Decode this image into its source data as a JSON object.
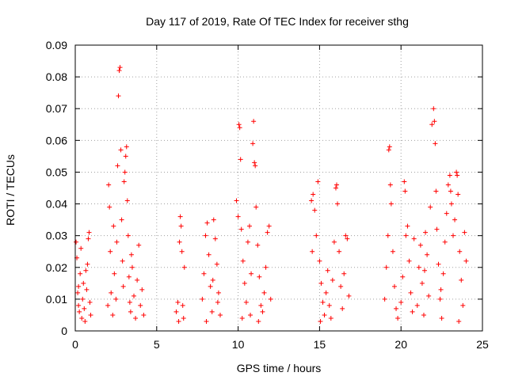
{
  "chart_data": {
    "type": "scatter",
    "title": "Day 117 of 2019, Rate Of TEC Index for receiver sthg",
    "xlabel": "GPS time / hours",
    "ylabel": "ROTI / TECUs",
    "xlim": [
      0,
      25
    ],
    "ylim": [
      0,
      0.09
    ],
    "xticks": [
      0,
      5,
      10,
      15,
      20,
      25
    ],
    "yticks": [
      0,
      0.01,
      0.02,
      0.03,
      0.04,
      0.05,
      0.06,
      0.07,
      0.08,
      0.09
    ],
    "xtick_labels": [
      "0",
      "5",
      "10",
      "15",
      "20",
      "25"
    ],
    "ytick_labels": [
      "0",
      "0.01",
      "0.02",
      "0.03",
      "0.04",
      "0.05",
      "0.06",
      "0.07",
      "0.08",
      "0.09"
    ],
    "grid": true,
    "marker": "+",
    "color": "#ff0000",
    "series": [
      {
        "name": "ROTI",
        "points": [
          [
            0.05,
            0.028
          ],
          [
            0.1,
            0.023
          ],
          [
            0.15,
            0.012
          ],
          [
            0.2,
            0.008
          ],
          [
            0.25,
            0.006
          ],
          [
            0.3,
            0.018
          ],
          [
            0.35,
            0.026
          ],
          [
            0.4,
            0.004
          ],
          [
            0.45,
            0.01
          ],
          [
            0.5,
            0.015
          ],
          [
            0.55,
            0.007
          ],
          [
            0.6,
            0.003
          ],
          [
            0.7,
            0.013
          ],
          [
            0.75,
            0.021
          ],
          [
            0.8,
            0.029
          ],
          [
            0.85,
            0.031
          ],
          [
            0.9,
            0.009
          ],
          [
            0.95,
            0.005
          ],
          [
            0.2,
            0.014
          ],
          [
            0.65,
            0.019
          ],
          [
            2.0,
            0.008
          ],
          [
            2.05,
            0.046
          ],
          [
            2.1,
            0.039
          ],
          [
            2.15,
            0.025
          ],
          [
            2.2,
            0.012
          ],
          [
            2.3,
            0.005
          ],
          [
            2.4,
            0.018
          ],
          [
            2.5,
            0.01
          ],
          [
            2.6,
            0.052
          ],
          [
            2.65,
            0.074
          ],
          [
            2.7,
            0.082
          ],
          [
            2.75,
            0.083
          ],
          [
            2.8,
            0.057
          ],
          [
            2.85,
            0.035
          ],
          [
            2.9,
            0.022
          ],
          [
            2.95,
            0.014
          ],
          [
            3.0,
            0.047
          ],
          [
            3.05,
            0.05
          ],
          [
            3.1,
            0.055
          ],
          [
            3.15,
            0.058
          ],
          [
            3.2,
            0.041
          ],
          [
            3.25,
            0.03
          ],
          [
            3.3,
            0.017
          ],
          [
            3.35,
            0.009
          ],
          [
            3.4,
            0.006
          ],
          [
            3.5,
            0.02
          ],
          [
            3.6,
            0.011
          ],
          [
            3.7,
            0.004
          ],
          [
            3.8,
            0.016
          ],
          [
            3.9,
            0.027
          ],
          [
            4.0,
            0.008
          ],
          [
            4.1,
            0.013
          ],
          [
            4.2,
            0.005
          ],
          [
            2.55,
            0.028
          ],
          [
            2.35,
            0.033
          ],
          [
            3.45,
            0.024
          ],
          [
            6.2,
            0.006
          ],
          [
            6.3,
            0.009
          ],
          [
            6.4,
            0.028
          ],
          [
            6.45,
            0.036
          ],
          [
            6.5,
            0.033
          ],
          [
            6.55,
            0.025
          ],
          [
            6.6,
            0.008
          ],
          [
            6.65,
            0.004
          ],
          [
            6.7,
            0.02
          ],
          [
            6.35,
            0.003
          ],
          [
            7.8,
            0.01
          ],
          [
            7.9,
            0.018
          ],
          [
            8.0,
            0.03
          ],
          [
            8.1,
            0.034
          ],
          [
            8.2,
            0.024
          ],
          [
            8.3,
            0.014
          ],
          [
            8.4,
            0.006
          ],
          [
            8.5,
            0.035
          ],
          [
            8.6,
            0.029
          ],
          [
            8.7,
            0.021
          ],
          [
            8.8,
            0.012
          ],
          [
            8.9,
            0.005
          ],
          [
            8.05,
            0.003
          ],
          [
            8.45,
            0.016
          ],
          [
            8.75,
            0.009
          ],
          [
            9.9,
            0.041
          ],
          [
            10.0,
            0.036
          ],
          [
            10.05,
            0.065
          ],
          [
            10.1,
            0.064
          ],
          [
            10.15,
            0.054
          ],
          [
            10.2,
            0.032
          ],
          [
            10.3,
            0.022
          ],
          [
            10.4,
            0.015
          ],
          [
            10.5,
            0.009
          ],
          [
            10.6,
            0.028
          ],
          [
            10.7,
            0.033
          ],
          [
            10.8,
            0.018
          ],
          [
            10.9,
            0.059
          ],
          [
            10.95,
            0.066
          ],
          [
            11.0,
            0.053
          ],
          [
            11.05,
            0.052
          ],
          [
            11.1,
            0.039
          ],
          [
            11.2,
            0.027
          ],
          [
            11.3,
            0.017
          ],
          [
            11.4,
            0.008
          ],
          [
            11.5,
            0.006
          ],
          [
            11.6,
            0.012
          ],
          [
            11.7,
            0.02
          ],
          [
            11.8,
            0.031
          ],
          [
            11.9,
            0.033
          ],
          [
            12.0,
            0.01
          ],
          [
            10.25,
            0.004
          ],
          [
            10.75,
            0.005
          ],
          [
            11.25,
            0.003
          ],
          [
            14.5,
            0.041
          ],
          [
            14.6,
            0.043
          ],
          [
            14.7,
            0.038
          ],
          [
            14.8,
            0.03
          ],
          [
            14.9,
            0.047
          ],
          [
            15.0,
            0.022
          ],
          [
            15.1,
            0.015
          ],
          [
            15.2,
            0.009
          ],
          [
            15.3,
            0.005
          ],
          [
            15.4,
            0.012
          ],
          [
            15.5,
            0.019
          ],
          [
            15.6,
            0.008
          ],
          [
            15.7,
            0.004
          ],
          [
            15.8,
            0.016
          ],
          [
            15.9,
            0.028
          ],
          [
            16.0,
            0.045
          ],
          [
            16.05,
            0.046
          ],
          [
            16.1,
            0.04
          ],
          [
            16.2,
            0.025
          ],
          [
            16.3,
            0.014
          ],
          [
            16.4,
            0.007
          ],
          [
            16.5,
            0.018
          ],
          [
            16.6,
            0.03
          ],
          [
            16.7,
            0.029
          ],
          [
            16.8,
            0.011
          ],
          [
            14.55,
            0.025
          ],
          [
            15.05,
            0.003
          ],
          [
            19.0,
            0.01
          ],
          [
            19.1,
            0.02
          ],
          [
            19.2,
            0.03
          ],
          [
            19.25,
            0.057
          ],
          [
            19.3,
            0.058
          ],
          [
            19.35,
            0.046
          ],
          [
            19.4,
            0.04
          ],
          [
            19.5,
            0.025
          ],
          [
            19.6,
            0.014
          ],
          [
            19.7,
            0.007
          ],
          [
            19.8,
            0.004
          ],
          [
            20.0,
            0.009
          ],
          [
            20.1,
            0.017
          ],
          [
            20.2,
            0.047
          ],
          [
            20.25,
            0.044
          ],
          [
            20.3,
            0.03
          ],
          [
            20.4,
            0.033
          ],
          [
            20.5,
            0.022
          ],
          [
            20.6,
            0.012
          ],
          [
            20.7,
            0.006
          ],
          [
            20.8,
            0.029
          ],
          [
            21.0,
            0.008
          ],
          [
            21.1,
            0.02
          ],
          [
            21.2,
            0.027
          ],
          [
            21.3,
            0.015
          ],
          [
            21.4,
            0.005
          ],
          [
            21.5,
            0.031
          ],
          [
            21.6,
            0.024
          ],
          [
            21.7,
            0.011
          ],
          [
            21.8,
            0.039
          ],
          [
            21.9,
            0.065
          ],
          [
            22.0,
            0.07
          ],
          [
            22.05,
            0.066
          ],
          [
            22.1,
            0.059
          ],
          [
            22.15,
            0.044
          ],
          [
            22.2,
            0.032
          ],
          [
            22.3,
            0.021
          ],
          [
            22.4,
            0.01
          ],
          [
            22.5,
            0.004
          ],
          [
            22.6,
            0.018
          ],
          [
            22.7,
            0.028
          ],
          [
            22.8,
            0.037
          ],
          [
            22.9,
            0.046
          ],
          [
            23.0,
            0.049
          ],
          [
            23.05,
            0.044
          ],
          [
            23.1,
            0.04
          ],
          [
            23.2,
            0.03
          ],
          [
            23.3,
            0.035
          ],
          [
            23.4,
            0.05
          ],
          [
            23.45,
            0.049
          ],
          [
            23.5,
            0.043
          ],
          [
            23.6,
            0.025
          ],
          [
            23.7,
            0.016
          ],
          [
            23.8,
            0.008
          ],
          [
            23.9,
            0.031
          ],
          [
            24.0,
            0.022
          ],
          [
            23.55,
            0.003
          ],
          [
            22.45,
            0.013
          ],
          [
            21.45,
            0.019
          ]
        ]
      }
    ]
  }
}
